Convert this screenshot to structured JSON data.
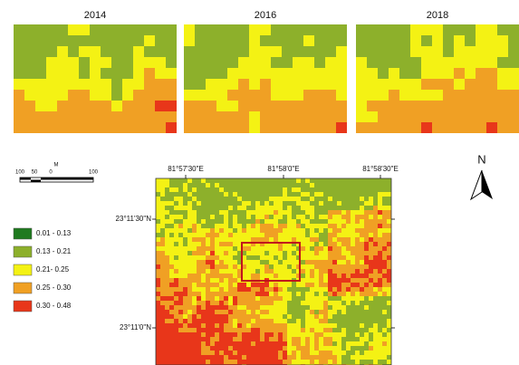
{
  "panels": [
    {
      "year": "2014"
    },
    {
      "year": "2016"
    },
    {
      "year": "2018"
    }
  ],
  "scale": {
    "unit": "M",
    "labels": [
      "100",
      "50",
      "0",
      "100"
    ]
  },
  "north": "N",
  "legend": [
    {
      "label": "0.01 - 0.13",
      "color": "#1f7a1f"
    },
    {
      "label": "0.13 - 0.21",
      "color": "#8db02b"
    },
    {
      "label": "0.21- 0.25",
      "color": "#f4f214"
    },
    {
      "label": "0.25 - 0.30",
      "color": "#f0a024"
    },
    {
      "label": "0.30 - 0.48",
      "color": "#e8361a"
    }
  ],
  "map": {
    "lon_labels": [
      "81°57'30\"E",
      "81°58'0\"E",
      "81°58'30\"E"
    ],
    "lat_labels": [
      "23°11'30\"N",
      "23°11'0\"N"
    ]
  }
}
